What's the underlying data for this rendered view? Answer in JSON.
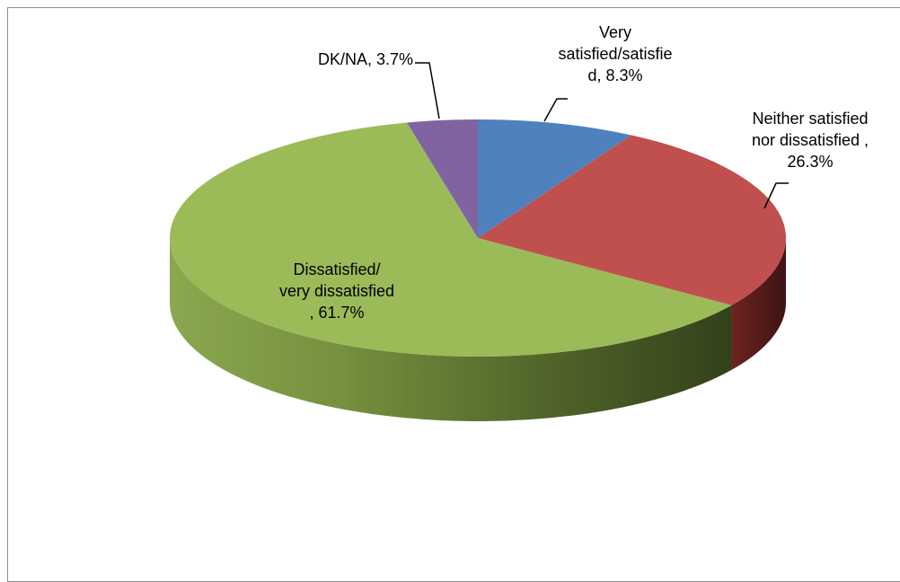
{
  "chart_data": {
    "type": "pie",
    "style": "3d",
    "title": "",
    "categories": [
      "Very satisfied/satisfied",
      "Neither satisfied nor dissatisfied",
      "Dissatisfied/ very dissatisfied",
      "DK/NA"
    ],
    "values": [
      8.3,
      26.3,
      61.7,
      3.7
    ],
    "unit": "%",
    "colors": [
      "#4F81BD",
      "#C0504D",
      "#9BBB59",
      "#8064A2"
    ],
    "data_labels": [
      "Very\nsatisfied/satisfie\nd, 8.3%",
      "Neither satisfied\nnor dissatisfied ,\n26.3%",
      "Dissatisfied/\nvery dissatisfied\n, 61.7%",
      "DK/NA, 3.7%"
    ],
    "legend": "none"
  }
}
